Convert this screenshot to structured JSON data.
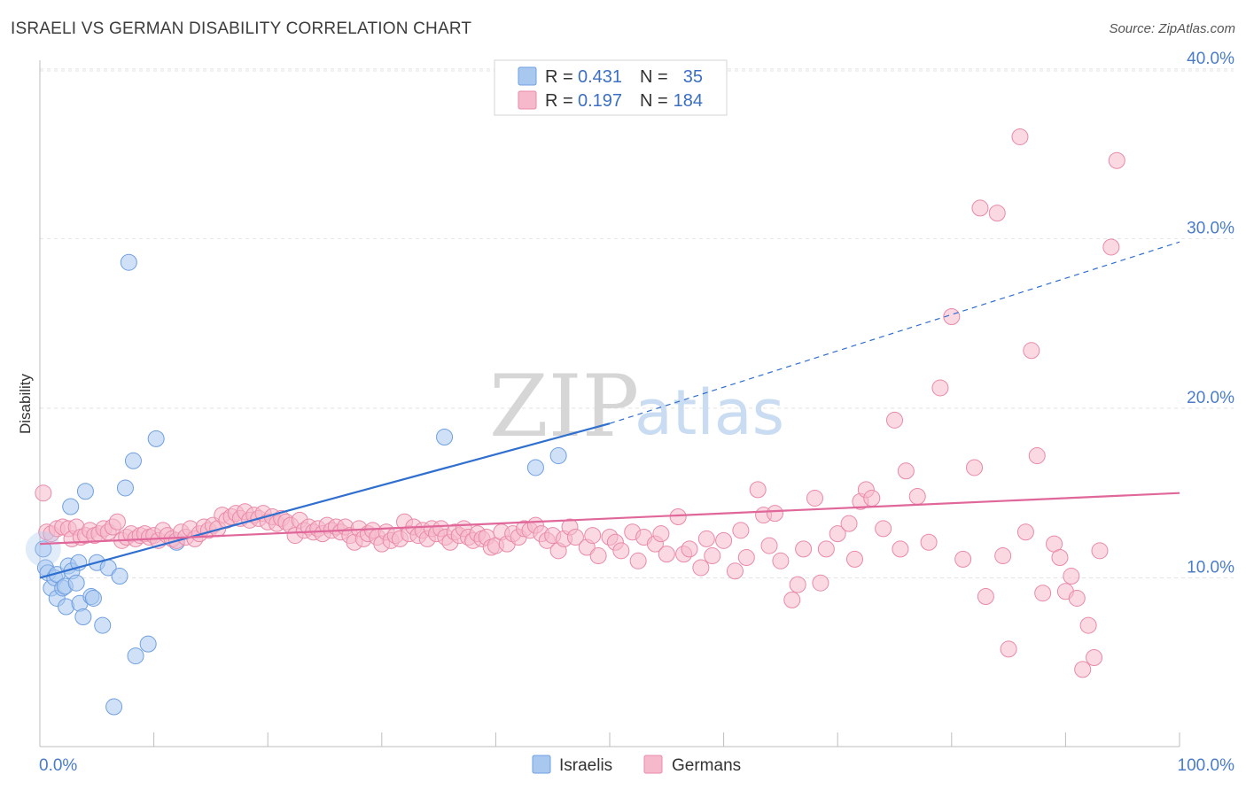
{
  "header": {
    "title": "ISRAELI VS GERMAN DISABILITY CORRELATION CHART",
    "source": "Source: ZipAtlas.com"
  },
  "watermark": {
    "zip": "ZIP",
    "atlas": "atlas"
  },
  "legend": {
    "rows": [
      {
        "r_label": "R = ",
        "r_value": "0.431",
        "n_label": "N = ",
        "n_value": "35",
        "color": "#a9c8f0"
      },
      {
        "r_label": "R = ",
        "r_value": "0.197",
        "n_label": "N = ",
        "n_value": "184",
        "color": "#f6b9cc"
      }
    ]
  },
  "bottom_legend": [
    {
      "label": "Israelis",
      "color": "#a9c8f0"
    },
    {
      "label": "Germans",
      "color": "#f6b9cc"
    }
  ],
  "chart_data": {
    "type": "scatter",
    "ylabel": "Disability",
    "xlim": [
      0,
      100
    ],
    "ylim": [
      0,
      41
    ],
    "x_tick_labels": [
      "0.0%",
      "100.0%"
    ],
    "y_ticks": [
      10,
      20,
      30,
      40
    ],
    "y_tick_labels": [
      "10.0%",
      "20.0%",
      "30.0%",
      "40.0%"
    ],
    "grid": true,
    "series": [
      {
        "name": "Israelis",
        "color": "#a9c8f0",
        "stroke": "#6f9fe0",
        "trend_color": "#2f6fcf",
        "trend": {
          "x0": 0,
          "y0": 10.0,
          "x1": 50,
          "y1": 19.1,
          "dash_to_x": 100,
          "dash_to_y": 29.8
        },
        "points": [
          [
            0.3,
            11.7
          ],
          [
            0.5,
            10.6
          ],
          [
            0.7,
            10.3
          ],
          [
            1.0,
            9.4
          ],
          [
            1.3,
            10.0
          ],
          [
            1.5,
            10.2
          ],
          [
            1.5,
            8.8
          ],
          [
            2.0,
            9.4
          ],
          [
            2.2,
            9.5
          ],
          [
            2.3,
            8.3
          ],
          [
            2.5,
            10.7
          ],
          [
            2.7,
            14.2
          ],
          [
            2.8,
            10.4
          ],
          [
            3.2,
            9.7
          ],
          [
            3.4,
            10.9
          ],
          [
            3.5,
            8.5
          ],
          [
            3.8,
            7.7
          ],
          [
            4.0,
            15.1
          ],
          [
            4.5,
            8.9
          ],
          [
            4.7,
            8.8
          ],
          [
            5.0,
            10.9
          ],
          [
            5.5,
            7.2
          ],
          [
            6.0,
            10.6
          ],
          [
            6.5,
            2.4
          ],
          [
            7.0,
            10.1
          ],
          [
            7.5,
            15.3
          ],
          [
            7.8,
            28.6
          ],
          [
            8.2,
            16.9
          ],
          [
            8.4,
            5.4
          ],
          [
            9.5,
            6.1
          ],
          [
            10.2,
            18.2
          ],
          [
            12.0,
            12.1
          ],
          [
            35.5,
            18.3
          ],
          [
            43.5,
            16.5
          ],
          [
            45.5,
            17.2
          ]
        ]
      },
      {
        "name": "Germans",
        "color": "#f6b9cc",
        "stroke": "#e98aa8",
        "trend_color": "#e0679a",
        "trend": {
          "x0": 0,
          "y0": 12.0,
          "x1": 100,
          "y1": 15.0
        },
        "points": [
          [
            0.3,
            15.0
          ],
          [
            0.6,
            12.7
          ],
          [
            1.0,
            12.6
          ],
          [
            1.5,
            12.9
          ],
          [
            2.0,
            13.0
          ],
          [
            2.5,
            12.9
          ],
          [
            2.8,
            12.3
          ],
          [
            3.2,
            13.0
          ],
          [
            3.6,
            12.4
          ],
          [
            4.0,
            12.5
          ],
          [
            4.4,
            12.8
          ],
          [
            4.8,
            12.5
          ],
          [
            5.2,
            12.6
          ],
          [
            5.6,
            12.9
          ],
          [
            6.0,
            12.7
          ],
          [
            6.4,
            13.0
          ],
          [
            6.8,
            13.3
          ],
          [
            7.2,
            12.2
          ],
          [
            7.6,
            12.4
          ],
          [
            8.0,
            12.6
          ],
          [
            8.4,
            12.3
          ],
          [
            8.8,
            12.5
          ],
          [
            9.2,
            12.6
          ],
          [
            9.6,
            12.4
          ],
          [
            10.0,
            12.5
          ],
          [
            10.4,
            12.2
          ],
          [
            10.8,
            12.8
          ],
          [
            11.2,
            12.5
          ],
          [
            11.6,
            12.3
          ],
          [
            12.0,
            12.2
          ],
          [
            12.4,
            12.7
          ],
          [
            12.8,
            12.4
          ],
          [
            13.2,
            12.9
          ],
          [
            13.6,
            12.3
          ],
          [
            14.0,
            12.6
          ],
          [
            14.4,
            13.0
          ],
          [
            14.8,
            12.8
          ],
          [
            15.2,
            13.1
          ],
          [
            15.6,
            12.9
          ],
          [
            16.0,
            13.7
          ],
          [
            16.4,
            13.4
          ],
          [
            16.8,
            13.6
          ],
          [
            17.2,
            13.8
          ],
          [
            17.6,
            13.5
          ],
          [
            18.0,
            13.9
          ],
          [
            18.4,
            13.4
          ],
          [
            18.8,
            13.7
          ],
          [
            19.2,
            13.5
          ],
          [
            19.6,
            13.8
          ],
          [
            20.0,
            13.3
          ],
          [
            20.4,
            13.6
          ],
          [
            20.8,
            13.2
          ],
          [
            21.2,
            13.5
          ],
          [
            21.6,
            13.3
          ],
          [
            22.0,
            13.1
          ],
          [
            22.4,
            12.5
          ],
          [
            22.8,
            13.4
          ],
          [
            23.2,
            12.8
          ],
          [
            23.6,
            13.0
          ],
          [
            24.0,
            12.7
          ],
          [
            24.4,
            12.9
          ],
          [
            24.8,
            12.6
          ],
          [
            25.2,
            13.1
          ],
          [
            25.6,
            12.8
          ],
          [
            26.0,
            13.0
          ],
          [
            26.4,
            12.7
          ],
          [
            26.8,
            13.0
          ],
          [
            27.2,
            12.5
          ],
          [
            27.6,
            12.1
          ],
          [
            28.0,
            12.9
          ],
          [
            28.4,
            12.3
          ],
          [
            28.8,
            12.6
          ],
          [
            29.2,
            12.8
          ],
          [
            29.6,
            12.4
          ],
          [
            30.0,
            12.0
          ],
          [
            30.4,
            12.7
          ],
          [
            30.8,
            12.2
          ],
          [
            31.2,
            12.5
          ],
          [
            31.6,
            12.3
          ],
          [
            32.0,
            13.3
          ],
          [
            32.4,
            12.6
          ],
          [
            32.8,
            13.0
          ],
          [
            33.2,
            12.5
          ],
          [
            33.6,
            12.8
          ],
          [
            34.0,
            12.3
          ],
          [
            34.4,
            12.9
          ],
          [
            34.8,
            12.6
          ],
          [
            35.2,
            12.9
          ],
          [
            35.6,
            12.4
          ],
          [
            36.0,
            12.1
          ],
          [
            36.4,
            12.7
          ],
          [
            36.8,
            12.5
          ],
          [
            37.2,
            12.9
          ],
          [
            37.6,
            12.4
          ],
          [
            38.0,
            12.2
          ],
          [
            38.4,
            12.6
          ],
          [
            38.8,
            12.3
          ],
          [
            39.2,
            12.4
          ],
          [
            39.6,
            11.8
          ],
          [
            40.0,
            11.9
          ],
          [
            40.5,
            12.7
          ],
          [
            41.0,
            12.0
          ],
          [
            41.5,
            12.6
          ],
          [
            42.0,
            12.4
          ],
          [
            42.5,
            12.9
          ],
          [
            43.0,
            12.8
          ],
          [
            43.5,
            13.1
          ],
          [
            44.0,
            12.6
          ],
          [
            44.5,
            12.2
          ],
          [
            45.0,
            12.5
          ],
          [
            45.5,
            11.6
          ],
          [
            46.0,
            12.3
          ],
          [
            46.5,
            13.0
          ],
          [
            47.0,
            12.4
          ],
          [
            48.0,
            11.8
          ],
          [
            48.5,
            12.5
          ],
          [
            49.0,
            11.3
          ],
          [
            50.0,
            12.4
          ],
          [
            50.5,
            12.1
          ],
          [
            51.0,
            11.6
          ],
          [
            52.0,
            12.7
          ],
          [
            52.5,
            11.0
          ],
          [
            53.0,
            12.4
          ],
          [
            54.0,
            12.0
          ],
          [
            54.5,
            12.6
          ],
          [
            55.0,
            11.4
          ],
          [
            56.0,
            13.6
          ],
          [
            56.5,
            11.4
          ],
          [
            57.0,
            11.7
          ],
          [
            58.0,
            10.6
          ],
          [
            58.5,
            12.3
          ],
          [
            59.0,
            11.3
          ],
          [
            60.0,
            12.2
          ],
          [
            61.0,
            10.4
          ],
          [
            61.5,
            12.8
          ],
          [
            62.0,
            11.2
          ],
          [
            63.0,
            15.2
          ],
          [
            63.5,
            13.7
          ],
          [
            64.0,
            11.9
          ],
          [
            64.5,
            13.8
          ],
          [
            65.0,
            11.0
          ],
          [
            66.0,
            8.7
          ],
          [
            66.5,
            9.6
          ],
          [
            67.0,
            11.7
          ],
          [
            68.0,
            14.7
          ],
          [
            68.5,
            9.7
          ],
          [
            69.0,
            11.7
          ],
          [
            70.0,
            12.6
          ],
          [
            71.0,
            13.2
          ],
          [
            71.5,
            11.1
          ],
          [
            72.0,
            14.5
          ],
          [
            72.5,
            15.2
          ],
          [
            73.0,
            14.7
          ],
          [
            74.0,
            12.9
          ],
          [
            75.0,
            19.3
          ],
          [
            75.5,
            11.7
          ],
          [
            76.0,
            16.3
          ],
          [
            77.0,
            14.8
          ],
          [
            78.0,
            12.1
          ],
          [
            79.0,
            21.2
          ],
          [
            80.0,
            25.4
          ],
          [
            81.0,
            11.1
          ],
          [
            82.0,
            16.5
          ],
          [
            82.5,
            31.8
          ],
          [
            83.0,
            8.9
          ],
          [
            84.0,
            31.5
          ],
          [
            85.0,
            5.8
          ],
          [
            86.0,
            36.0
          ],
          [
            87.0,
            23.4
          ],
          [
            87.5,
            17.2
          ],
          [
            88.0,
            9.1
          ],
          [
            89.0,
            12.0
          ],
          [
            89.5,
            11.2
          ],
          [
            90.0,
            9.2
          ],
          [
            91.0,
            8.8
          ],
          [
            91.5,
            4.6
          ],
          [
            92.0,
            7.2
          ],
          [
            92.5,
            5.3
          ],
          [
            93.0,
            11.6
          ],
          [
            94.0,
            29.5
          ],
          [
            94.5,
            34.6
          ],
          [
            90.5,
            10.1
          ],
          [
            84.5,
            11.3
          ],
          [
            86.5,
            12.7
          ]
        ]
      }
    ]
  }
}
